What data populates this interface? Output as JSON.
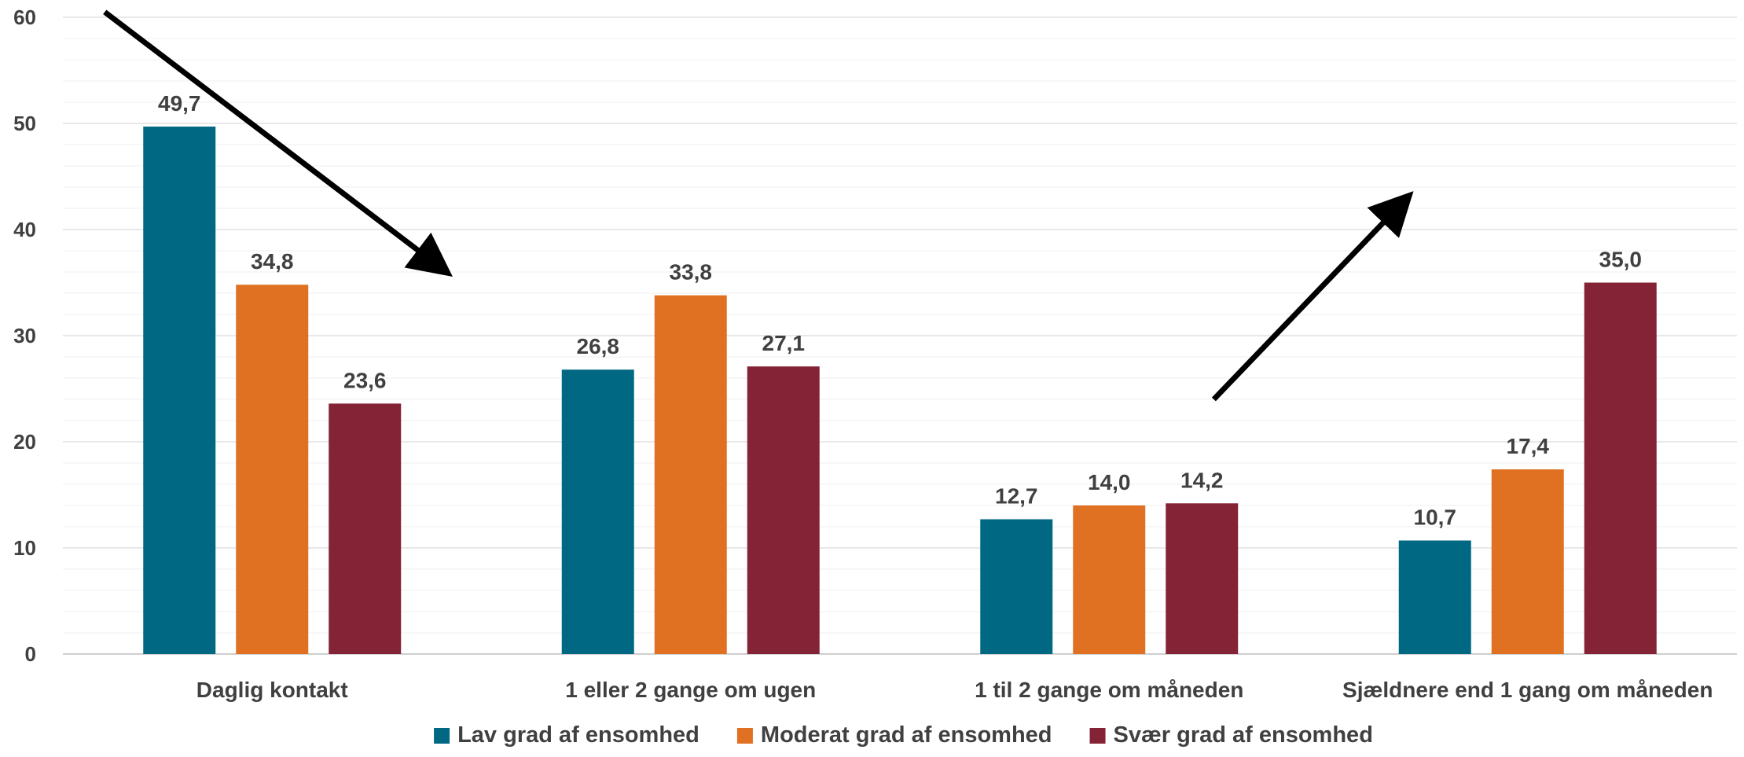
{
  "chart_data": {
    "type": "bar",
    "categories": [
      "Daglig kontakt",
      "1 eller 2 gange om ugen",
      "1 til 2 gange om måneden",
      "Sjældnere end 1 gang om måneden"
    ],
    "series": [
      {
        "name": "Lav grad af ensomhed",
        "color": "#006882",
        "values": [
          49.7,
          26.8,
          12.7,
          10.7
        ],
        "labels": [
          "49,7",
          "26,8",
          "12,7",
          "10,7"
        ]
      },
      {
        "name": "Moderat grad af ensomhed",
        "color": "#E07022",
        "values": [
          34.8,
          33.8,
          14.0,
          17.4
        ],
        "labels": [
          "34,8",
          "33,8",
          "14,0",
          "17,4"
        ]
      },
      {
        "name": "Svær grad af ensomhed",
        "color": "#842335",
        "values": [
          23.6,
          27.1,
          14.2,
          35.0
        ],
        "labels": [
          "23,6",
          "27,1",
          "14,2",
          "35,0"
        ]
      }
    ],
    "yticks": [
      0,
      10,
      20,
      30,
      40,
      50,
      60
    ],
    "ylim": [
      0,
      60
    ],
    "grid": true,
    "legend_position": "bottom",
    "annotations": [
      {
        "type": "arrow",
        "direction": "down-right",
        "from": {
          "x": 0.1,
          "y": 60.5
        },
        "to": {
          "x": 0.9,
          "y": 36.5
        }
      },
      {
        "type": "arrow",
        "direction": "up-right",
        "from": {
          "x": 2.75,
          "y": 24
        },
        "to": {
          "x": 3.2,
          "y": 42.5
        }
      }
    ],
    "xlabel": "",
    "ylabel": ""
  }
}
